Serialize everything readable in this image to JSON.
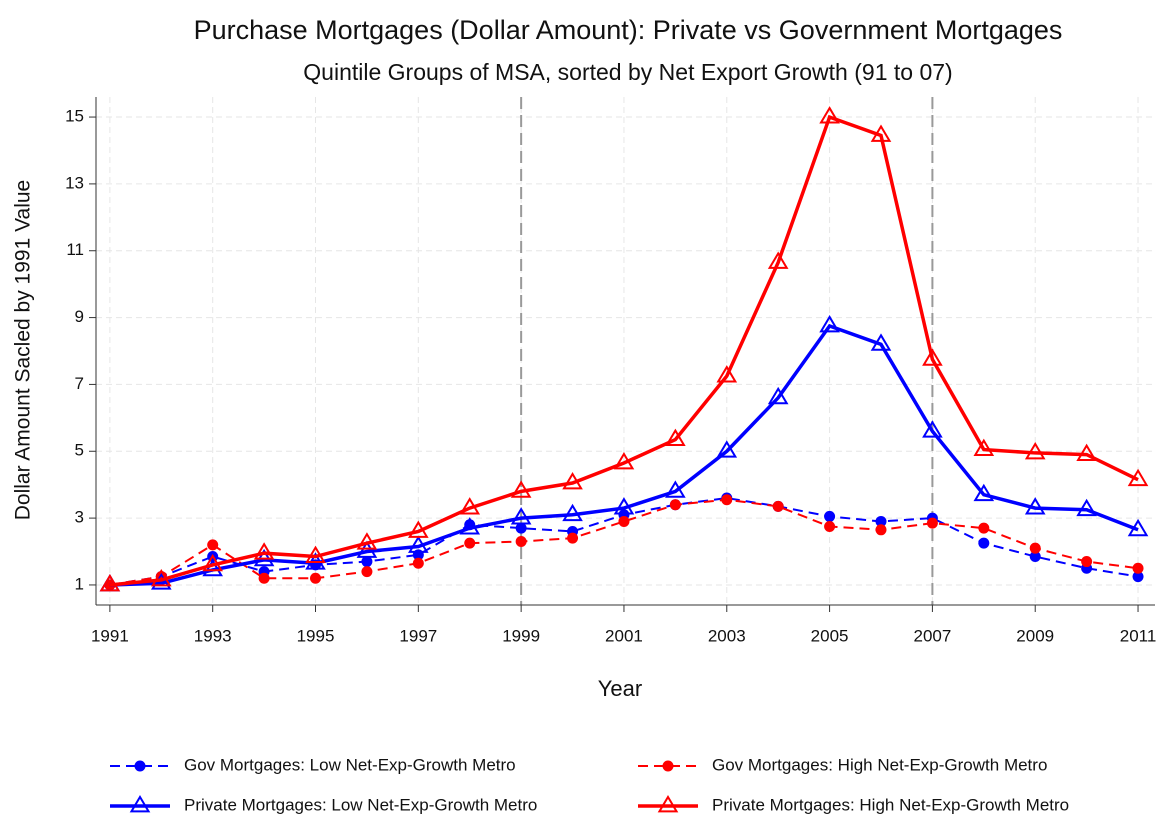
{
  "chart_data": {
    "type": "line",
    "title": "Purchase Mortgages (Dollar Amount): Private vs Government Mortgages",
    "subtitle": "Quintile Groups of MSA, sorted by Net Export Growth (91 to 07)",
    "x_label": "Year",
    "y_label": "Dollar Amount Sacled by 1991 Value",
    "x": [
      1991,
      1992,
      1993,
      1994,
      1995,
      1996,
      1997,
      1998,
      1999,
      2000,
      2001,
      2002,
      2003,
      2004,
      2005,
      2006,
      2007,
      2008,
      2009,
      2010,
      2011
    ],
    "series": [
      {
        "name": "Gov Mortgages: Low Net-Exp-Growth Metro",
        "color": "#0000ff",
        "dashed": true,
        "marker": "circle",
        "values": [
          1.0,
          1.25,
          1.85,
          1.4,
          1.6,
          1.7,
          1.9,
          2.8,
          2.7,
          2.6,
          3.1,
          3.4,
          3.6,
          3.35,
          3.05,
          2.9,
          3.0,
          2.25,
          1.85,
          1.5,
          1.25
        ]
      },
      {
        "name": "Gov Mortgages: High Net-Exp-Growth Metro",
        "color": "#ff0000",
        "dashed": true,
        "marker": "circle",
        "values": [
          1.0,
          1.25,
          2.2,
          1.2,
          1.2,
          1.4,
          1.65,
          2.25,
          2.3,
          2.4,
          2.9,
          3.4,
          3.55,
          3.35,
          2.75,
          2.65,
          2.85,
          2.7,
          2.1,
          1.7,
          1.5
        ]
      },
      {
        "name": "Private Mortgages: Low  Net-Exp-Growth Metro",
        "color": "#0000ff",
        "dashed": false,
        "marker": "triangle",
        "values": [
          1.0,
          1.05,
          1.45,
          1.75,
          1.65,
          2.0,
          2.15,
          2.7,
          3.0,
          3.1,
          3.3,
          3.8,
          5.0,
          6.6,
          8.75,
          8.2,
          5.6,
          3.7,
          3.3,
          3.25,
          2.65
        ]
      },
      {
        "name": "Private Mortgages: High Net-Exp-Growth Metro",
        "color": "#ff0000",
        "dashed": false,
        "marker": "triangle",
        "values": [
          1.0,
          1.15,
          1.6,
          1.95,
          1.85,
          2.25,
          2.6,
          3.3,
          3.8,
          4.05,
          4.65,
          5.35,
          7.25,
          10.65,
          15.0,
          14.45,
          7.75,
          5.05,
          4.95,
          4.9,
          4.15
        ]
      }
    ],
    "xlim": [
      1990.73,
      2011.33
    ],
    "ylim": [
      0.4,
      15.6
    ],
    "xticks": [
      1991,
      1993,
      1995,
      1997,
      1999,
      2001,
      2003,
      2005,
      2007,
      2009,
      2011
    ],
    "yticks": [
      1,
      3,
      5,
      7,
      9,
      11,
      13,
      15
    ],
    "reference_lines": [
      1999,
      2007
    ],
    "grid": true
  }
}
